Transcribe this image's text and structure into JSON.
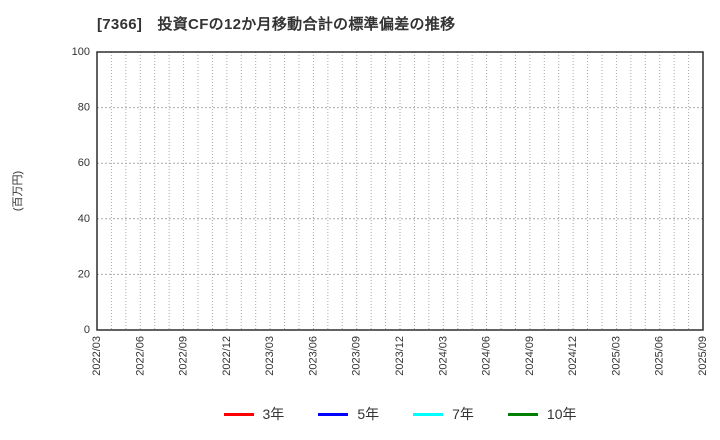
{
  "title": "[7366]　投資CFの12か月移動合計の標準偏差の推移",
  "chart_data": {
    "type": "line",
    "title": "[7366]　投資CFの12か月移動合計の標準偏差の推移",
    "ylabel": "(百万円)",
    "xlabel": "",
    "x_labels": [
      "2022/03",
      "2022/06",
      "2022/09",
      "2022/12",
      "2023/03",
      "2023/06",
      "2023/09",
      "2023/12",
      "2024/03",
      "2024/06",
      "2024/09",
      "2024/12",
      "2025/03",
      "2025/06",
      "2025/09"
    ],
    "minor_x_divisions_per_interval": 3,
    "ylim": [
      0,
      100
    ],
    "yticks": [
      0,
      20,
      40,
      60,
      80,
      100
    ],
    "grid": true,
    "legend_position": "bottom",
    "series": [
      {
        "name": "3年",
        "color": "#ff0000",
        "values": []
      },
      {
        "name": "5年",
        "color": "#0000ff",
        "values": []
      },
      {
        "name": "7年",
        "color": "#00ffff",
        "values": []
      },
      {
        "name": "10年",
        "color": "#008000",
        "values": []
      }
    ]
  }
}
